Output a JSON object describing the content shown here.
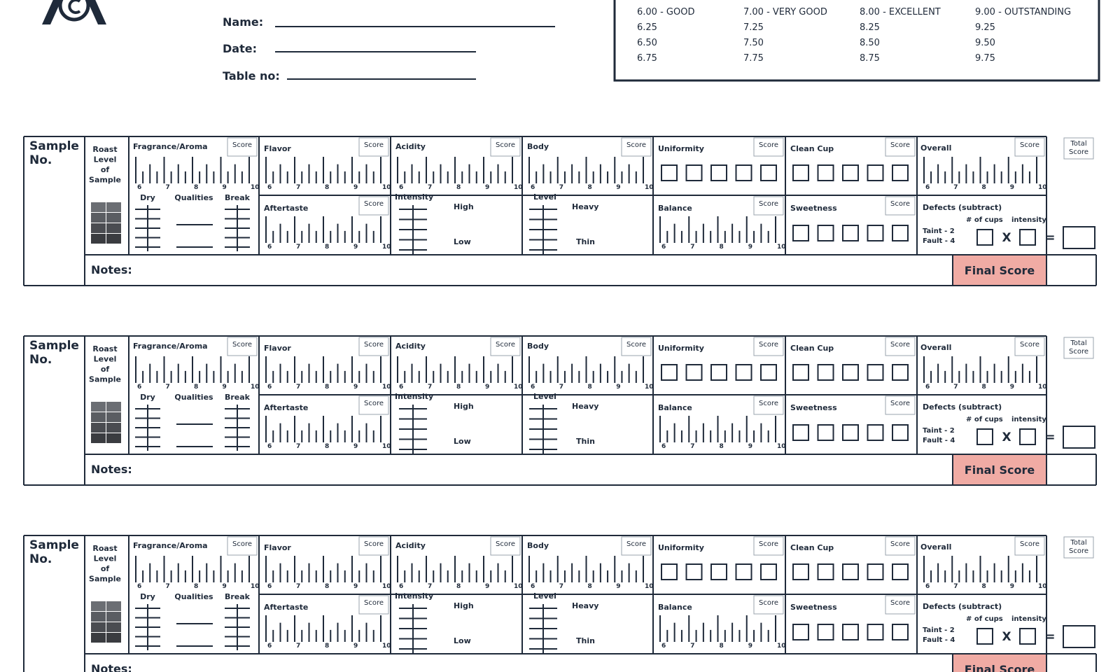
{
  "header": {
    "name_label": "Name:",
    "date_label": "Date:",
    "table_label": "Table no:"
  },
  "quality_scale": {
    "columns": [
      [
        "6.00 - GOOD",
        "6.25",
        "6.50",
        "6.75"
      ],
      [
        "7.00 - VERY GOOD",
        "7.25",
        "7.50",
        "7.75"
      ],
      [
        "8.00 - EXCELLENT",
        "8.25",
        "8.50",
        "8.75"
      ],
      [
        "9.00 - OUTSTANDING",
        "9.25",
        "9.50",
        "9.75"
      ]
    ]
  },
  "form": {
    "sample_no": [
      "Sample",
      "No."
    ],
    "roast": [
      "Roast",
      "Level",
      "of",
      "Sample"
    ],
    "score": "Score",
    "total_score": [
      "Total",
      "Score"
    ],
    "scale_ticks": [
      "6",
      "7",
      "8",
      "9",
      "10"
    ],
    "fragrance": "Fragrance/Aroma",
    "dry": "Dry",
    "qualities": "Qualities",
    "break": "Break",
    "flavor": "Flavor",
    "aftertaste": "Aftertaste",
    "acidity": "Acidity",
    "intensity": "Intensity",
    "high": "High",
    "low": "Low",
    "body": "Body",
    "level": "Level",
    "heavy": "Heavy",
    "thin": "Thin",
    "uniformity": "Uniformity",
    "balance": "Balance",
    "clean_cup": "Clean Cup",
    "sweetness": "Sweetness",
    "overall": "Overall",
    "defects": "Defects (subtract)",
    "cups": "# of cups",
    "defect_intensity": "intensity",
    "taint": "Taint - 2",
    "fault": "Fault - 4",
    "times": "X",
    "equals": "=",
    "notes": "Notes:",
    "final_score": "Final Score"
  }
}
